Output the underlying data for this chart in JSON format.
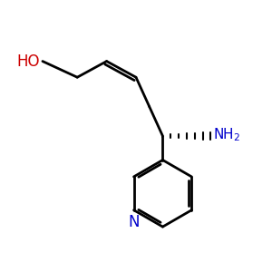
{
  "background_color": "#ffffff",
  "bond_color": "#000000",
  "ho_color": "#cc0000",
  "nh2_color": "#0000cc",
  "n_color": "#0000cc",
  "line_width": 2.0,
  "figsize": [
    3.0,
    3.0
  ],
  "dpi": 100,
  "xlim": [
    0,
    10
  ],
  "ylim": [
    0,
    10
  ]
}
